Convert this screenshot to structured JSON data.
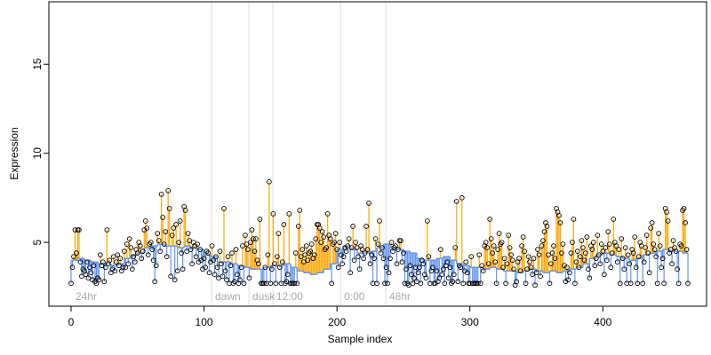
{
  "chart_data": {
    "type": "lollipop-step",
    "xlabel": "Sample index",
    "ylabel": "Expression",
    "xlim": [
      -16.7,
      478
    ],
    "ylim": [
      1.42,
      18.5
    ],
    "xticks": [
      0,
      100,
      200,
      300,
      400
    ],
    "yticks": [
      5,
      10,
      15
    ],
    "above_color": "#ffa500",
    "below_color": "#6495ed",
    "point_color": "#000000",
    "vline_color": "#dddddd",
    "vlines": [
      105.7,
      133.8,
      151.8,
      202.7,
      236.8
    ],
    "annotations": [
      {
        "x": 2,
        "text": "24hr"
      },
      {
        "x": 107,
        "text": "dawn"
      },
      {
        "x": 135,
        "text": "dusk"
      },
      {
        "x": 153,
        "text": "12:00"
      },
      {
        "x": 204,
        "text": "0:00"
      },
      {
        "x": 238,
        "text": "48hr"
      }
    ],
    "values": [
      2.7,
      3.6,
      4.2,
      5.7,
      4.4,
      5.7,
      5.7,
      3.9,
      3.1,
      3.5,
      3.4,
      3.2,
      3.9,
      3.0,
      3.6,
      3.3,
      2.9,
      3.7,
      2.8,
      2.7,
      3.0,
      2.9,
      4.3,
      3.7,
      3.9,
      2.8,
      3.6,
      5.7,
      3.8,
      4.0,
      3.3,
      3.5,
      4.2,
      3.4,
      3.9,
      4.3,
      3.7,
      4.1,
      3.4,
      3.6,
      4.5,
      3.6,
      4.9,
      3.8,
      5.2,
      4.7,
      3.5,
      4.2,
      3.9,
      4.6,
      4.4,
      5.0,
      4.8,
      4.1,
      4.5,
      5.7,
      6.2,
      5.8,
      4.3,
      4.9,
      5.0,
      4.6,
      4.0,
      2.8,
      3.7,
      5.5,
      5.1,
      4.5,
      7.7,
      6.4,
      4.9,
      5.6,
      4.2,
      7.9,
      6.9,
      3.1,
      5.4,
      5.8,
      2.9,
      6.0,
      3.4,
      5.0,
      6.2,
      4.4,
      3.5,
      7.0,
      6.8,
      4.5,
      5.5,
      5.1,
      4.6,
      3.8,
      5.0,
      4.8,
      4.2,
      4.9,
      3.9,
      4.6,
      4.0,
      3.5,
      4.1,
      3.6,
      4.5,
      4.4,
      3.3,
      3.9,
      4.8,
      4.0,
      3.2,
      4.2,
      3.6,
      3.0,
      4.5,
      3.8,
      3.1,
      6.9,
      3.4,
      2.9,
      4.2,
      2.7,
      3.7,
      4.4,
      2.7,
      2.8,
      4.6,
      3.2,
      2.7,
      2.9,
      3.6,
      4.8,
      2.7,
      5.4,
      4.9,
      4.6,
      3.0,
      5.0,
      5.7,
      5.2,
      4.5,
      5.2,
      4.0,
      3.8,
      6.3,
      2.7,
      2.7,
      2.7,
      3.6,
      2.7,
      4.3,
      8.4,
      2.7,
      3.5,
      6.6,
      3.8,
      2.7,
      4.2,
      5.5,
      3.6,
      2.7,
      3.9,
      6.0,
      2.7,
      2.8,
      3.2,
      6.6,
      2.7,
      2.7,
      2.7,
      2.7,
      4.4,
      2.7,
      5.9,
      6.8,
      4.2,
      4.6,
      3.9,
      4.3,
      4.8,
      4.0,
      4.4,
      4.5,
      4.9,
      4.1,
      4.3,
      5.2,
      6.0,
      6.0,
      5.8,
      5.0,
      5.6,
      5.3,
      4.6,
      4.7,
      6.6,
      5.4,
      5.2,
      2.7,
      4.9,
      5.0,
      5.5,
      4.6,
      3.6,
      5.0,
      4.3,
      3.8,
      4.2,
      4.7,
      4.5,
      4.8,
      5.2,
      3.3,
      4.7,
      5.9,
      4.0,
      5.0,
      4.7,
      4.2,
      3.5,
      4.8,
      4.6,
      4.1,
      4.4,
      5.9,
      4.6,
      7.2,
      3.8,
      4.3,
      2.7,
      4.1,
      5.2,
      2.7,
      4.9,
      6.2,
      4.4,
      4.7,
      4.1,
      2.7,
      3.6,
      2.7,
      3.3,
      4.1,
      5.0,
      4.5,
      4.7,
      4.8,
      3.8,
      4.6,
      5.1,
      5.1,
      3.9,
      4.4,
      2.7,
      3.5,
      2.7,
      2.6,
      3.7,
      3.2,
      2.7,
      3.0,
      3.6,
      2.8,
      3.3,
      3.6,
      2.7,
      4.0,
      3.8,
      3.2,
      3.0,
      6.2,
      4.2,
      2.7,
      3.4,
      3.6,
      2.7,
      2.7,
      3.4,
      2.8,
      3.0,
      4.6,
      3.2,
      3.5,
      2.7,
      3.7,
      3.9,
      3.0,
      3.6,
      2.7,
      2.8,
      3.2,
      4.7,
      7.3,
      2.8,
      3.7,
      3.6,
      7.5,
      2.7,
      3.4,
      3.9,
      3.3,
      2.7,
      2.7,
      4.2,
      2.7,
      2.7,
      2.7,
      2.7,
      2.7,
      4.3,
      2.7,
      3.7,
      3.4,
      4.8,
      5.0,
      4.7,
      3.8,
      6.3,
      5.2,
      4.4,
      4.8,
      3.9,
      2.7,
      4.6,
      5.5,
      4.9,
      5.0,
      3.6,
      4.1,
      2.7,
      3.8,
      5.4,
      4.7,
      4.3,
      4.0,
      3.5,
      2.6,
      2.8,
      3.9,
      4.1,
      3.4,
      4.8,
      5.3,
      4.5,
      2.7,
      3.5,
      4.2,
      3.9,
      3.6,
      3.2,
      4.1,
      2.6,
      3.3,
      4.6,
      4.3,
      3.1,
      4.8,
      5.1,
      5.6,
      6.1,
      5.9,
      4.3,
      2.7,
      3.8,
      4.4,
      4.8,
      4.1,
      6.9,
      6.7,
      6.5,
      6.1,
      4.4,
      4.9,
      3.7,
      2.8,
      3.6,
      2.9,
      3.3,
      4.4,
      5.0,
      6.3,
      2.7,
      3.9,
      4.5,
      3.6,
      4.2,
      5.1,
      4.7,
      4.0,
      4.4,
      5.3,
      3.5,
      3.0,
      4.8,
      4.6,
      5.0,
      3.7,
      4.1,
      5.4,
      4.3,
      3.8,
      4.9,
      4.5,
      3.2,
      4.7,
      4.0,
      5.6,
      4.9,
      3.6,
      4.4,
      6.3,
      5.0,
      4.8,
      3.9,
      4.6,
      2.7,
      5.2,
      4.1,
      3.5,
      4.7,
      2.7,
      4.3,
      3.8,
      2.7,
      4.6,
      4.4,
      5.3,
      3.6,
      2.7,
      4.2,
      5.0,
      4.8,
      2.7,
      3.9,
      4.7,
      5.4,
      4.4,
      3.3,
      5.8,
      6.1,
      4.9,
      4.6,
      4.2,
      2.7,
      5.5,
      4.8,
      3.6,
      4.1,
      2.7,
      6.9,
      6.7,
      6.2,
      4.4,
      4.6,
      3.8,
      5.1,
      4.7,
      4.5,
      3.5,
      2.7,
      4.9,
      4.8,
      6.8,
      6.9,
      6.1,
      4.6,
      2.7
    ],
    "baseline": {
      "x": [
        0,
        5,
        10,
        15,
        20,
        25,
        30,
        35,
        40,
        45,
        50,
        55,
        60,
        65,
        70,
        75,
        80,
        85,
        90,
        95,
        100,
        105,
        110,
        115,
        120,
        125,
        130,
        135,
        140,
        145,
        150,
        155,
        160,
        165,
        170,
        175,
        180,
        185,
        190,
        195,
        200,
        205,
        210,
        215,
        220,
        225,
        230,
        235,
        240,
        245,
        250,
        255,
        260,
        265,
        270,
        275,
        280,
        285,
        290,
        295,
        300,
        305,
        310,
        315,
        320,
        325,
        330,
        335,
        340,
        345,
        350,
        355,
        360,
        365,
        370,
        375,
        380,
        385,
        390,
        395,
        400,
        405,
        410,
        415,
        420,
        425,
        430,
        435,
        440,
        445,
        450,
        455,
        460
      ],
      "values": [
        4.0,
        4.1,
        4.0,
        3.9,
        3.8,
        3.8,
        3.7,
        3.8,
        4.1,
        4.3,
        4.4,
        4.7,
        4.8,
        4.9,
        4.8,
        4.8,
        4.7,
        4.8,
        4.7,
        4.6,
        4.3,
        4.2,
        3.9,
        3.9,
        3.8,
        3.7,
        3.6,
        3.5,
        3.5,
        3.6,
        3.7,
        3.7,
        3.8,
        3.6,
        3.4,
        3.3,
        3.2,
        3.3,
        3.5,
        3.8,
        4.6,
        4.8,
        4.6,
        4.4,
        4.4,
        4.5,
        4.7,
        4.9,
        4.7,
        4.6,
        4.5,
        4.4,
        4.1,
        4.0,
        4.0,
        4.1,
        4.2,
        4.0,
        3.8,
        3.7,
        3.6,
        3.6,
        3.5,
        3.6,
        3.5,
        3.4,
        3.4,
        3.3,
        3.4,
        3.5,
        3.4,
        3.3,
        3.4,
        3.3,
        3.4,
        3.5,
        3.6,
        3.8,
        4.1,
        4.3,
        4.4,
        4.3,
        4.2,
        4.1,
        4.0,
        4.1,
        4.3,
        4.4,
        4.5,
        4.6,
        4.5,
        4.5,
        4.4
      ]
    }
  }
}
